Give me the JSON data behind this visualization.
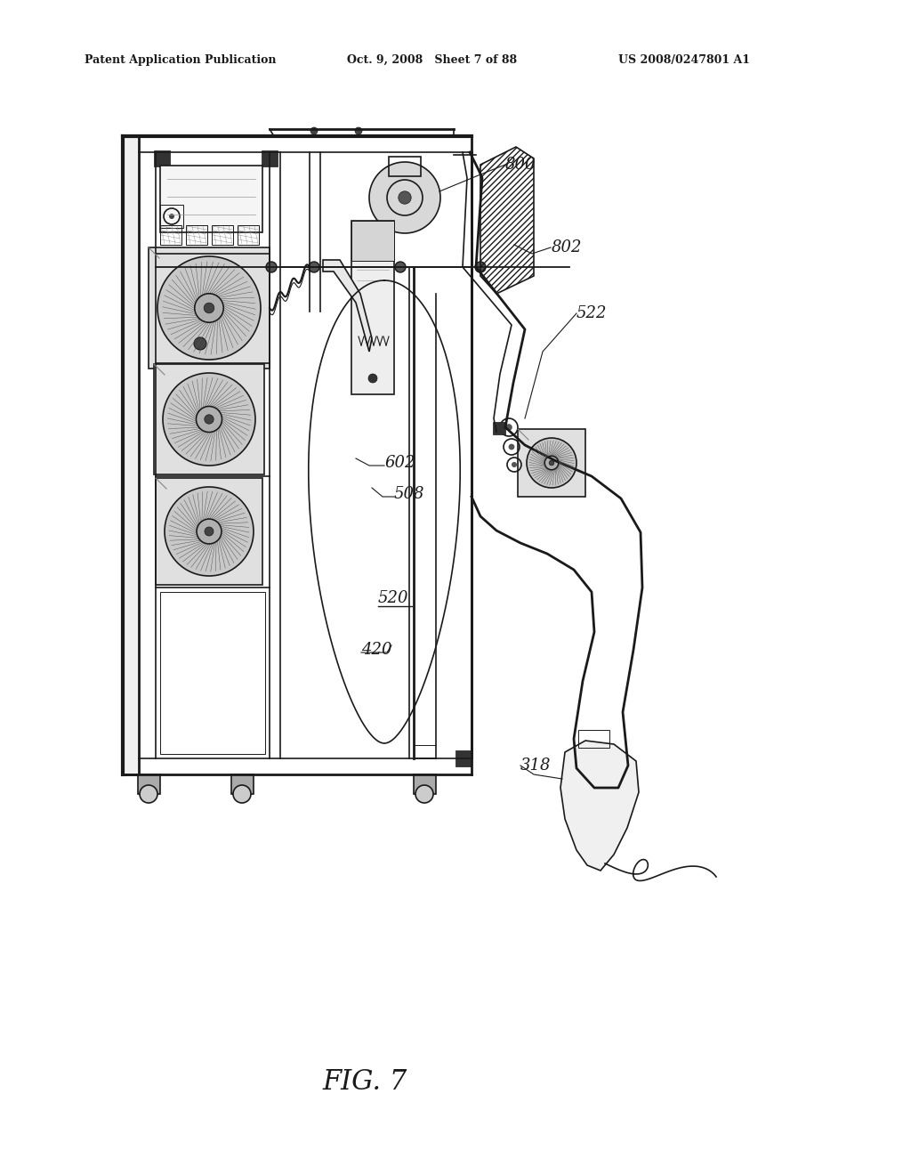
{
  "background_color": "#ffffff",
  "header_left": "Patent Application Publication",
  "header_center": "Oct. 9, 2008   Sheet 7 of 88",
  "header_right": "US 2008/0247801 A1",
  "figure_label": "FIG. 7",
  "line_color": "#1a1a1a",
  "title_fontsize": 9,
  "label_fontsize": 13,
  "fig_label_fontsize": 22
}
